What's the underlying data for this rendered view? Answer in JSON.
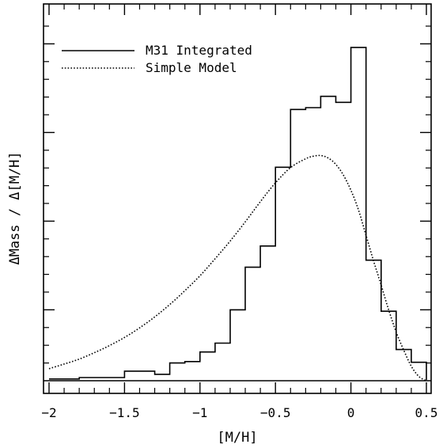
{
  "chart_data": {
    "type": "line",
    "title": "",
    "xlabel": "[M/H]",
    "ylabel": "ΔMass / Δ[M/H]",
    "xlim": [
      -2.0,
      0.55
    ],
    "ylim": [
      0,
      1.0
    ],
    "grid": false,
    "legend_position": "top-left",
    "x_ticks": [
      {
        "value": -2,
        "label": "−2"
      },
      {
        "value": -1.5,
        "label": "−1.5"
      },
      {
        "value": -1,
        "label": "−1"
      },
      {
        "value": -0.5,
        "label": "−0.5"
      },
      {
        "value": 0,
        "label": "0"
      },
      {
        "value": 0.5,
        "label": "0.5"
      }
    ],
    "y_ticks": [
      0.2,
      0.45,
      0.7,
      0.95
    ],
    "series": [
      {
        "name": "M31 Integrated",
        "style": "histogram",
        "bin_width": 0.1,
        "bins": [
          {
            "x": -2.0,
            "y": 0.005
          },
          {
            "x": -1.9,
            "y": 0.005
          },
          {
            "x": -1.8,
            "y": 0.009
          },
          {
            "x": -1.7,
            "y": 0.009
          },
          {
            "x": -1.6,
            "y": 0.009
          },
          {
            "x": -1.5,
            "y": 0.027
          },
          {
            "x": -1.4,
            "y": 0.027
          },
          {
            "x": -1.3,
            "y": 0.018
          },
          {
            "x": -1.2,
            "y": 0.05
          },
          {
            "x": -1.1,
            "y": 0.054
          },
          {
            "x": -1.0,
            "y": 0.081
          },
          {
            "x": -0.9,
            "y": 0.106
          },
          {
            "x": -0.8,
            "y": 0.2
          },
          {
            "x": -0.7,
            "y": 0.32
          },
          {
            "x": -0.6,
            "y": 0.38
          },
          {
            "x": -0.5,
            "y": 0.602
          },
          {
            "x": -0.4,
            "y": 0.765
          },
          {
            "x": -0.3,
            "y": 0.77
          },
          {
            "x": -0.2,
            "y": 0.802
          },
          {
            "x": -0.1,
            "y": 0.785
          },
          {
            "x": 0.0,
            "y": 0.94
          },
          {
            "x": 0.1,
            "y": 0.34
          },
          {
            "x": 0.2,
            "y": 0.196
          },
          {
            "x": 0.3,
            "y": 0.088
          },
          {
            "x": 0.4,
            "y": 0.052
          }
        ],
        "end_x": 0.5,
        "end_y": 0.002
      },
      {
        "name": "Simple Model",
        "style": "dotted",
        "x": [
          -2.0,
          -1.9,
          -1.8,
          -1.7,
          -1.6,
          -1.5,
          -1.4,
          -1.3,
          -1.2,
          -1.1,
          -1.0,
          -0.9,
          -0.8,
          -0.7,
          -0.6,
          -0.5,
          -0.4,
          -0.3,
          -0.25,
          -0.2,
          -0.15,
          -0.1,
          -0.05,
          0.0,
          0.05,
          0.1,
          0.15,
          0.2,
          0.25,
          0.3,
          0.35,
          0.4,
          0.45,
          0.5
        ],
        "y": [
          0.034,
          0.047,
          0.061,
          0.079,
          0.099,
          0.122,
          0.149,
          0.18,
          0.215,
          0.254,
          0.296,
          0.344,
          0.394,
          0.448,
          0.505,
          0.558,
          0.601,
          0.626,
          0.633,
          0.635,
          0.628,
          0.61,
          0.58,
          0.537,
          0.482,
          0.41,
          0.338,
          0.27,
          0.2,
          0.137,
          0.086,
          0.041,
          0.012,
          0.0
        ]
      }
    ]
  }
}
